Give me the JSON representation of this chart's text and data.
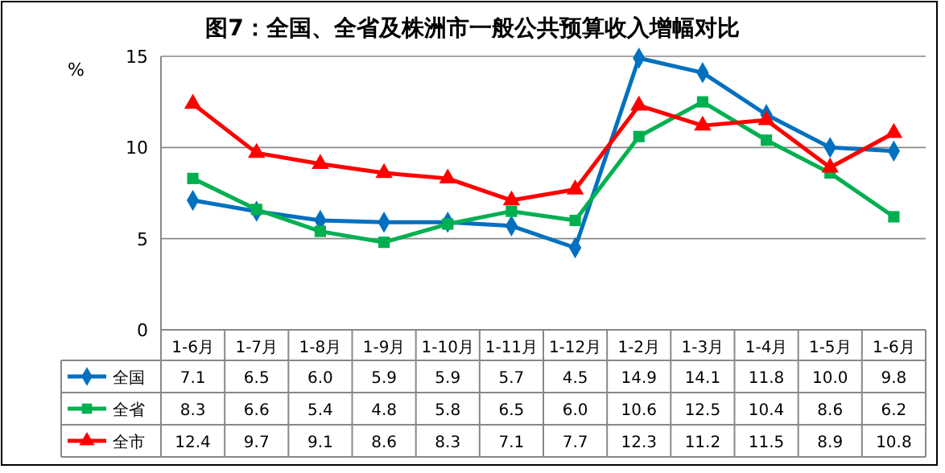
{
  "chart_data": {
    "type": "line",
    "title": "图7：全国、全省及株洲市一般公共预算收入增幅对比",
    "ylabel": "%",
    "categories": [
      "1-6月",
      "1-7月",
      "1-8月",
      "1-9月",
      "1-10月",
      "1-11月",
      "1-12月",
      "1-2月",
      "1-3月",
      "1-4月",
      "1-5月",
      "1-6月"
    ],
    "series": [
      {
        "name": "全国",
        "color": "#0070c0",
        "marker": "diamond",
        "values": [
          7.1,
          6.5,
          6.0,
          5.9,
          5.9,
          5.7,
          4.5,
          14.9,
          14.1,
          11.8,
          10.0,
          9.8
        ],
        "value_labels": [
          "7.1",
          "6.5",
          "6.0",
          "5.9",
          "5.9",
          "5.7",
          "4.5",
          "14.9",
          "14.1",
          "11.8",
          "10.0",
          "9.8"
        ]
      },
      {
        "name": "全省",
        "color": "#00b050",
        "marker": "square",
        "values": [
          8.3,
          6.6,
          5.4,
          4.8,
          5.8,
          6.5,
          6.0,
          10.6,
          12.5,
          10.4,
          8.6,
          6.2
        ],
        "value_labels": [
          "8.3",
          "6.6",
          "5.4",
          "4.8",
          "5.8",
          "6.5",
          "6.0",
          "10.6",
          "12.5",
          "10.4",
          "8.6",
          "6.2"
        ]
      },
      {
        "name": "全市",
        "color": "#ff0000",
        "marker": "triangle",
        "values": [
          12.4,
          9.7,
          9.1,
          8.6,
          8.3,
          7.1,
          7.7,
          12.3,
          11.2,
          11.5,
          8.9,
          10.8
        ],
        "value_labels": [
          "12.4",
          "9.7",
          "9.1",
          "8.6",
          "8.3",
          "7.1",
          "7.7",
          "12.3",
          "11.2",
          "11.5",
          "8.9",
          "10.8"
        ]
      }
    ],
    "ylim": [
      0,
      15
    ],
    "yticks": [
      0,
      5,
      10,
      15
    ],
    "grid": "y",
    "legend": "bottom"
  }
}
